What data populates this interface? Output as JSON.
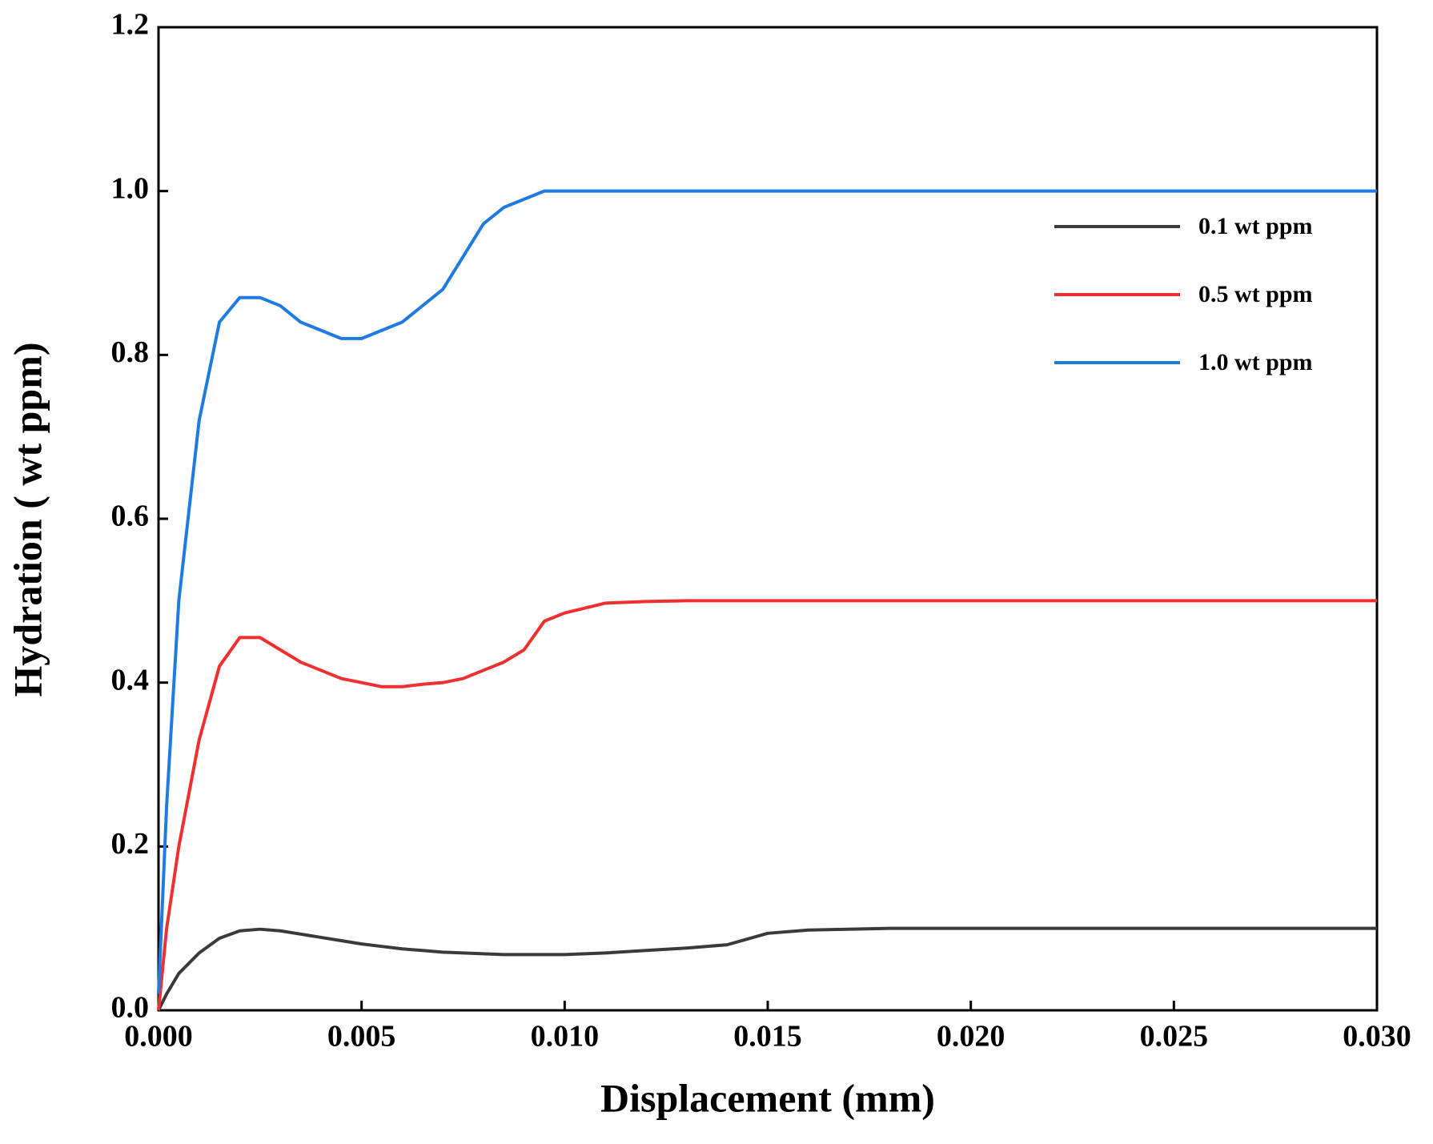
{
  "chart_data": {
    "type": "line",
    "x_label": "Displacement (mm)",
    "y_label": "Hydration ( wt ppm)",
    "x": [
      0,
      0.0002,
      0.0005,
      0.001,
      0.0015,
      0.002,
      0.0025,
      0.003,
      0.0035,
      0.004,
      0.0045,
      0.005,
      0.0055,
      0.006,
      0.0065,
      0.007,
      0.0075,
      0.008,
      0.0085,
      0.009,
      0.0095,
      0.01,
      0.011,
      0.012,
      0.013,
      0.014,
      0.015,
      0.016,
      0.018,
      0.02,
      0.025,
      0.03
    ],
    "series": [
      {
        "name": "0.1 wt ppm",
        "color": "#3a3a3a",
        "values": [
          0,
          0.02,
          0.045,
          0.07,
          0.088,
          0.097,
          0.099,
          0.097,
          0.093,
          0.089,
          0.085,
          0.081,
          0.078,
          0.075,
          0.073,
          0.071,
          0.07,
          0.069,
          0.068,
          0.068,
          0.068,
          0.068,
          0.07,
          0.073,
          0.076,
          0.08,
          0.094,
          0.098,
          0.1,
          0.1,
          0.1,
          0.1
        ]
      },
      {
        "name": "0.5 wt ppm",
        "color": "#f03030",
        "values": [
          0,
          0.1,
          0.2,
          0.33,
          0.42,
          0.455,
          0.455,
          0.44,
          0.425,
          0.415,
          0.405,
          0.4,
          0.395,
          0.395,
          0.398,
          0.4,
          0.405,
          0.415,
          0.425,
          0.44,
          0.475,
          0.485,
          0.497,
          0.499,
          0.5,
          0.5,
          0.5,
          0.5,
          0.5,
          0.5,
          0.5,
          0.5
        ]
      },
      {
        "name": "1.0 wt ppm",
        "color": "#1f7be0",
        "values": [
          0.02,
          0.25,
          0.5,
          0.72,
          0.84,
          0.87,
          0.87,
          0.86,
          0.84,
          0.83,
          0.82,
          0.82,
          0.83,
          0.84,
          0.86,
          0.88,
          0.92,
          0.96,
          0.98,
          0.99,
          1.0,
          1.0,
          1.0,
          1.0,
          1.0,
          1.0,
          1.0,
          1.0,
          1.0,
          1.0,
          1.0,
          1.0
        ]
      }
    ],
    "xlim": [
      0,
      0.03
    ],
    "ylim": [
      0,
      1.2
    ],
    "xticks": [
      {
        "value": 0,
        "label": "0.000"
      },
      {
        "value": 0.005,
        "label": "0.005"
      },
      {
        "value": 0.01,
        "label": "0.010"
      },
      {
        "value": 0.015,
        "label": "0.015"
      },
      {
        "value": 0.02,
        "label": "0.020"
      },
      {
        "value": 0.025,
        "label": "0.025"
      },
      {
        "value": 0.03,
        "label": "0.030"
      }
    ],
    "yticks": [
      {
        "value": 0,
        "label": "0.0"
      },
      0.2,
      0.4,
      0.6,
      0.8,
      {
        "value": 1,
        "label": "1.0"
      },
      1.2
    ],
    "legend": "upper right"
  }
}
